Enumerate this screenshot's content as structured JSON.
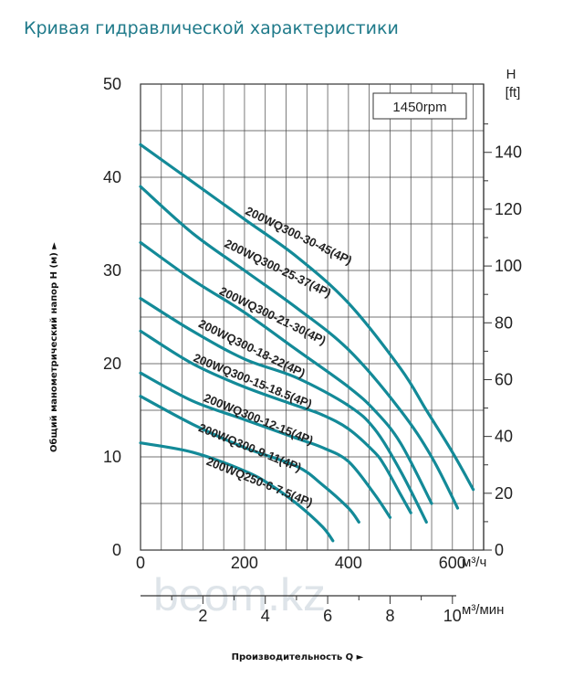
{
  "title": "Кривая гидравлической характеристики",
  "watermark": "beom.kz",
  "chart_data": {
    "type": "line",
    "rpm_label": "1450rpm",
    "ylabel": "Общий манометрический напор H (м) ►",
    "xlabel": "Производительность Q ►",
    "y_unit_right_line1": "H",
    "y_unit_right_line2": "[ft]",
    "x_unit_top": "м³/ч",
    "x_unit_bottom": "м³/мин",
    "xlim": [
      0,
      660
    ],
    "ylim": [
      0,
      50
    ],
    "grid": true,
    "x_ticks": [
      "0",
      "200",
      "400",
      "600"
    ],
    "y_ticks": [
      "0",
      "10",
      "20",
      "30",
      "40",
      "50"
    ],
    "y2_ticks": [
      "0",
      "20",
      "40",
      "60",
      "80",
      "100",
      "120",
      "140"
    ],
    "x2_ticks": [
      "2",
      "4",
      "6",
      "8",
      "10"
    ],
    "line_color": "#138a98",
    "series": [
      {
        "name": "200WQ300-30-45(4P)",
        "x": [
          0,
          100,
          200,
          300,
          400,
          500,
          550,
          600,
          640
        ],
        "y": [
          43.5,
          39.5,
          35.5,
          31.5,
          26.5,
          19.5,
          15,
          10.5,
          6.5
        ]
      },
      {
        "name": "200WQ300-25-37(4P)",
        "x": [
          0,
          100,
          200,
          300,
          400,
          500,
          560,
          610
        ],
        "y": [
          39,
          34,
          30,
          26,
          21.5,
          15,
          10,
          4.5
        ]
      },
      {
        "name": "200WQ300-21-30(4P)",
        "x": [
          0,
          100,
          200,
          300,
          400,
          450,
          500,
          560
        ],
        "y": [
          33,
          29,
          25.5,
          21.5,
          17.5,
          15,
          11.5,
          5
        ]
      },
      {
        "name": "200WQ300-18-22(4P)",
        "x": [
          0,
          100,
          200,
          300,
          400,
          450,
          500,
          550
        ],
        "y": [
          27,
          23.5,
          20.5,
          18.5,
          15.5,
          13,
          8.5,
          3
        ]
      },
      {
        "name": "200WQ300-15-18.5(4P)",
        "x": [
          0,
          100,
          200,
          300,
          350,
          400,
          450,
          470,
          500,
          520
        ],
        "y": [
          23.5,
          20,
          17.5,
          15.5,
          14.5,
          13,
          10.5,
          9,
          6,
          4
        ]
      },
      {
        "name": "200WQ300-12-15(4P)",
        "x": [
          0,
          100,
          200,
          300,
          350,
          400,
          450,
          480
        ],
        "y": [
          19,
          16,
          14,
          12,
          11,
          9.5,
          6,
          3.5
        ]
      },
      {
        "name": "200WQ300-9-11(4P)",
        "x": [
          0,
          100,
          200,
          300,
          350,
          400,
          420
        ],
        "y": [
          16.5,
          13.5,
          11,
          9,
          7,
          4.5,
          3
        ]
      },
      {
        "name": "200WQ250-6-7.5(4P)",
        "x": [
          0,
          100,
          200,
          250,
          300,
          350,
          370
        ],
        "y": [
          11.5,
          10.5,
          8.5,
          7,
          5,
          2.5,
          1
        ]
      }
    ]
  }
}
